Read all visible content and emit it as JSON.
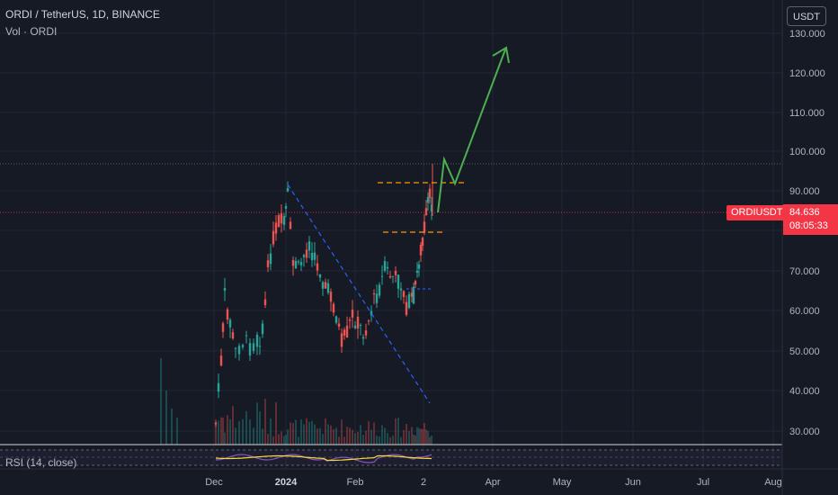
{
  "header": {
    "title": "ORDI / TetherUS, 1D, BINANCE",
    "volume_label": "Vol · ORDI"
  },
  "currency_button": "USDT",
  "price_axis": {
    "ticks": [
      "130.000",
      "120.000",
      "110.000",
      "100.000",
      "90.000",
      "70.000",
      "60.000",
      "50.000",
      "40.000",
      "30.000"
    ]
  },
  "time_axis": {
    "ticks": [
      "Dec",
      "2024",
      "Feb",
      "2",
      "Apr",
      "May",
      "Jun",
      "Jul",
      "Aug"
    ]
  },
  "last_price": {
    "symbol": "ORDIUSDT",
    "price": "84.636",
    "countdown": "08:05:33"
  },
  "rsi": {
    "label": "RSI (14, close)"
  },
  "colors": {
    "background": "#161a25",
    "up": "#26a69a",
    "down": "#ef5350",
    "arrow": "#4caf50",
    "levels": "#ff9800",
    "trendline": "#2962ff",
    "badge": "#f23645"
  }
}
